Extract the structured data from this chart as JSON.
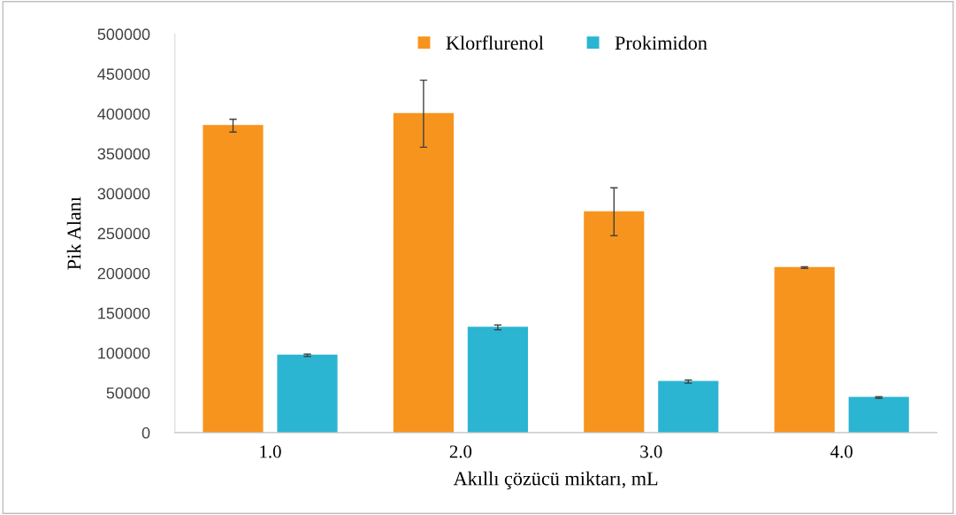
{
  "chart_data": {
    "type": "bar",
    "xlabel": "Akıllı çözücü miktarı, mL",
    "ylabel": "Pik Alanı",
    "categories": [
      "1.0",
      "2.0",
      "3.0",
      "4.0"
    ],
    "series": [
      {
        "name": "Klorflurenol",
        "color": "#f7941d",
        "values": [
          385000,
          400000,
          277000,
          207000
        ],
        "errors": [
          8000,
          42000,
          30000,
          1000
        ]
      },
      {
        "name": "Prokimidon",
        "color": "#2bb5d2",
        "values": [
          97000,
          132000,
          64000,
          44000
        ],
        "errors": [
          1500,
          3000,
          2000,
          1000
        ]
      }
    ],
    "ylim": [
      0,
      500000
    ],
    "yticks": [
      0,
      50000,
      100000,
      150000,
      200000,
      250000,
      300000,
      350000,
      400000,
      450000,
      500000
    ],
    "grid": false,
    "legend": "top"
  }
}
